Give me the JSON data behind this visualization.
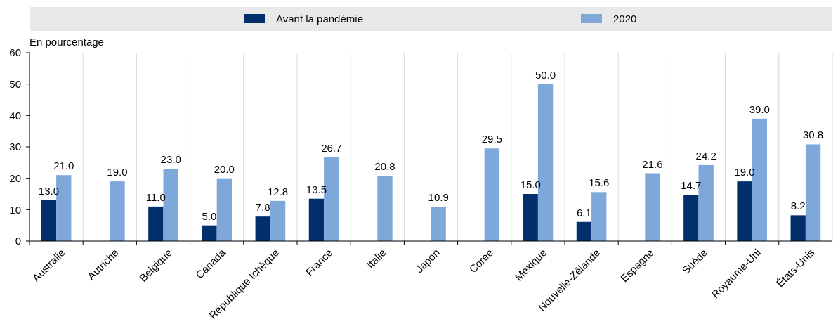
{
  "chart_data": {
    "type": "bar",
    "ylabel": "En pourcentage",
    "categories": [
      "Australie",
      "Autriche",
      "Belgique",
      "Canada",
      "République tchèque",
      "France",
      "Italie",
      "Japon",
      "Corée",
      "Mexique",
      "Nouvelle-Zélande",
      "Espagne",
      "Suède",
      "Royaume-Uni",
      "États-Unis"
    ],
    "series": [
      {
        "name": "Avant la pandémie",
        "color": "#002f6c",
        "values": [
          13.0,
          null,
          11.0,
          5.0,
          7.8,
          13.5,
          null,
          null,
          null,
          15.0,
          6.1,
          null,
          14.7,
          19.0,
          8.2
        ],
        "value_labels": [
          "13.0",
          null,
          "11.0",
          "5.0",
          "7.8",
          "13.5",
          null,
          null,
          null,
          "15.0",
          "6.1",
          null,
          "14.7",
          "19.0",
          "8.2"
        ]
      },
      {
        "name": "2020",
        "color": "#7fa8da",
        "values": [
          21.0,
          19.0,
          23.0,
          20.0,
          12.8,
          26.7,
          20.8,
          10.9,
          29.5,
          50.0,
          15.6,
          21.6,
          24.2,
          39.0,
          30.8
        ],
        "value_labels": [
          "21.0",
          "19.0",
          "23.0",
          "20.0",
          "12.8",
          "26.7",
          "20.8",
          "10.9",
          "29.5",
          "50.0",
          "15.6",
          "21.6",
          "24.2",
          "39.0",
          "30.8"
        ]
      }
    ],
    "ylim": [
      0,
      60
    ],
    "yticks": [
      0,
      10,
      20,
      30,
      40,
      50,
      60
    ],
    "grid": "x",
    "legend": "top"
  }
}
